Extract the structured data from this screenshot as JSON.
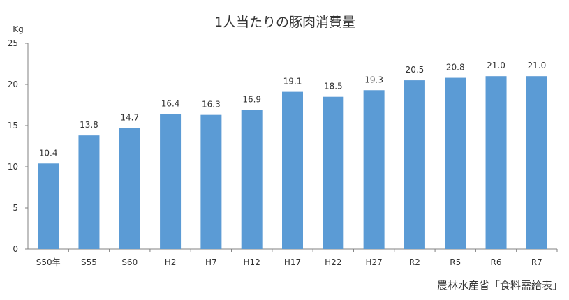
{
  "chart_data": {
    "type": "bar",
    "title": "1人当たりの豚肉消費量",
    "ylabel": "Kg",
    "xlabel": "",
    "ylim": [
      0,
      25
    ],
    "yticks": [
      0,
      5,
      10,
      15,
      20,
      25
    ],
    "categories": [
      "S50年",
      "S55",
      "S60",
      "H2",
      "H7",
      "H12",
      "H17",
      "H22",
      "H27",
      "R2",
      "R5",
      "R6",
      "R7"
    ],
    "values": [
      10.4,
      13.8,
      14.7,
      16.4,
      16.3,
      16.9,
      19.1,
      18.5,
      19.3,
      20.5,
      20.8,
      21.0,
      21.0
    ],
    "data_labels": [
      "10.4",
      "13.8",
      "14.7",
      "16.4",
      "16.3",
      "16.9",
      "19.1",
      "18.5",
      "19.3",
      "20.5",
      "20.8",
      "21.0",
      "21.0"
    ],
    "grid": false,
    "legend": "none",
    "bar_color": "#5b9bd5",
    "source": "農林水産省「食料需給表」"
  }
}
